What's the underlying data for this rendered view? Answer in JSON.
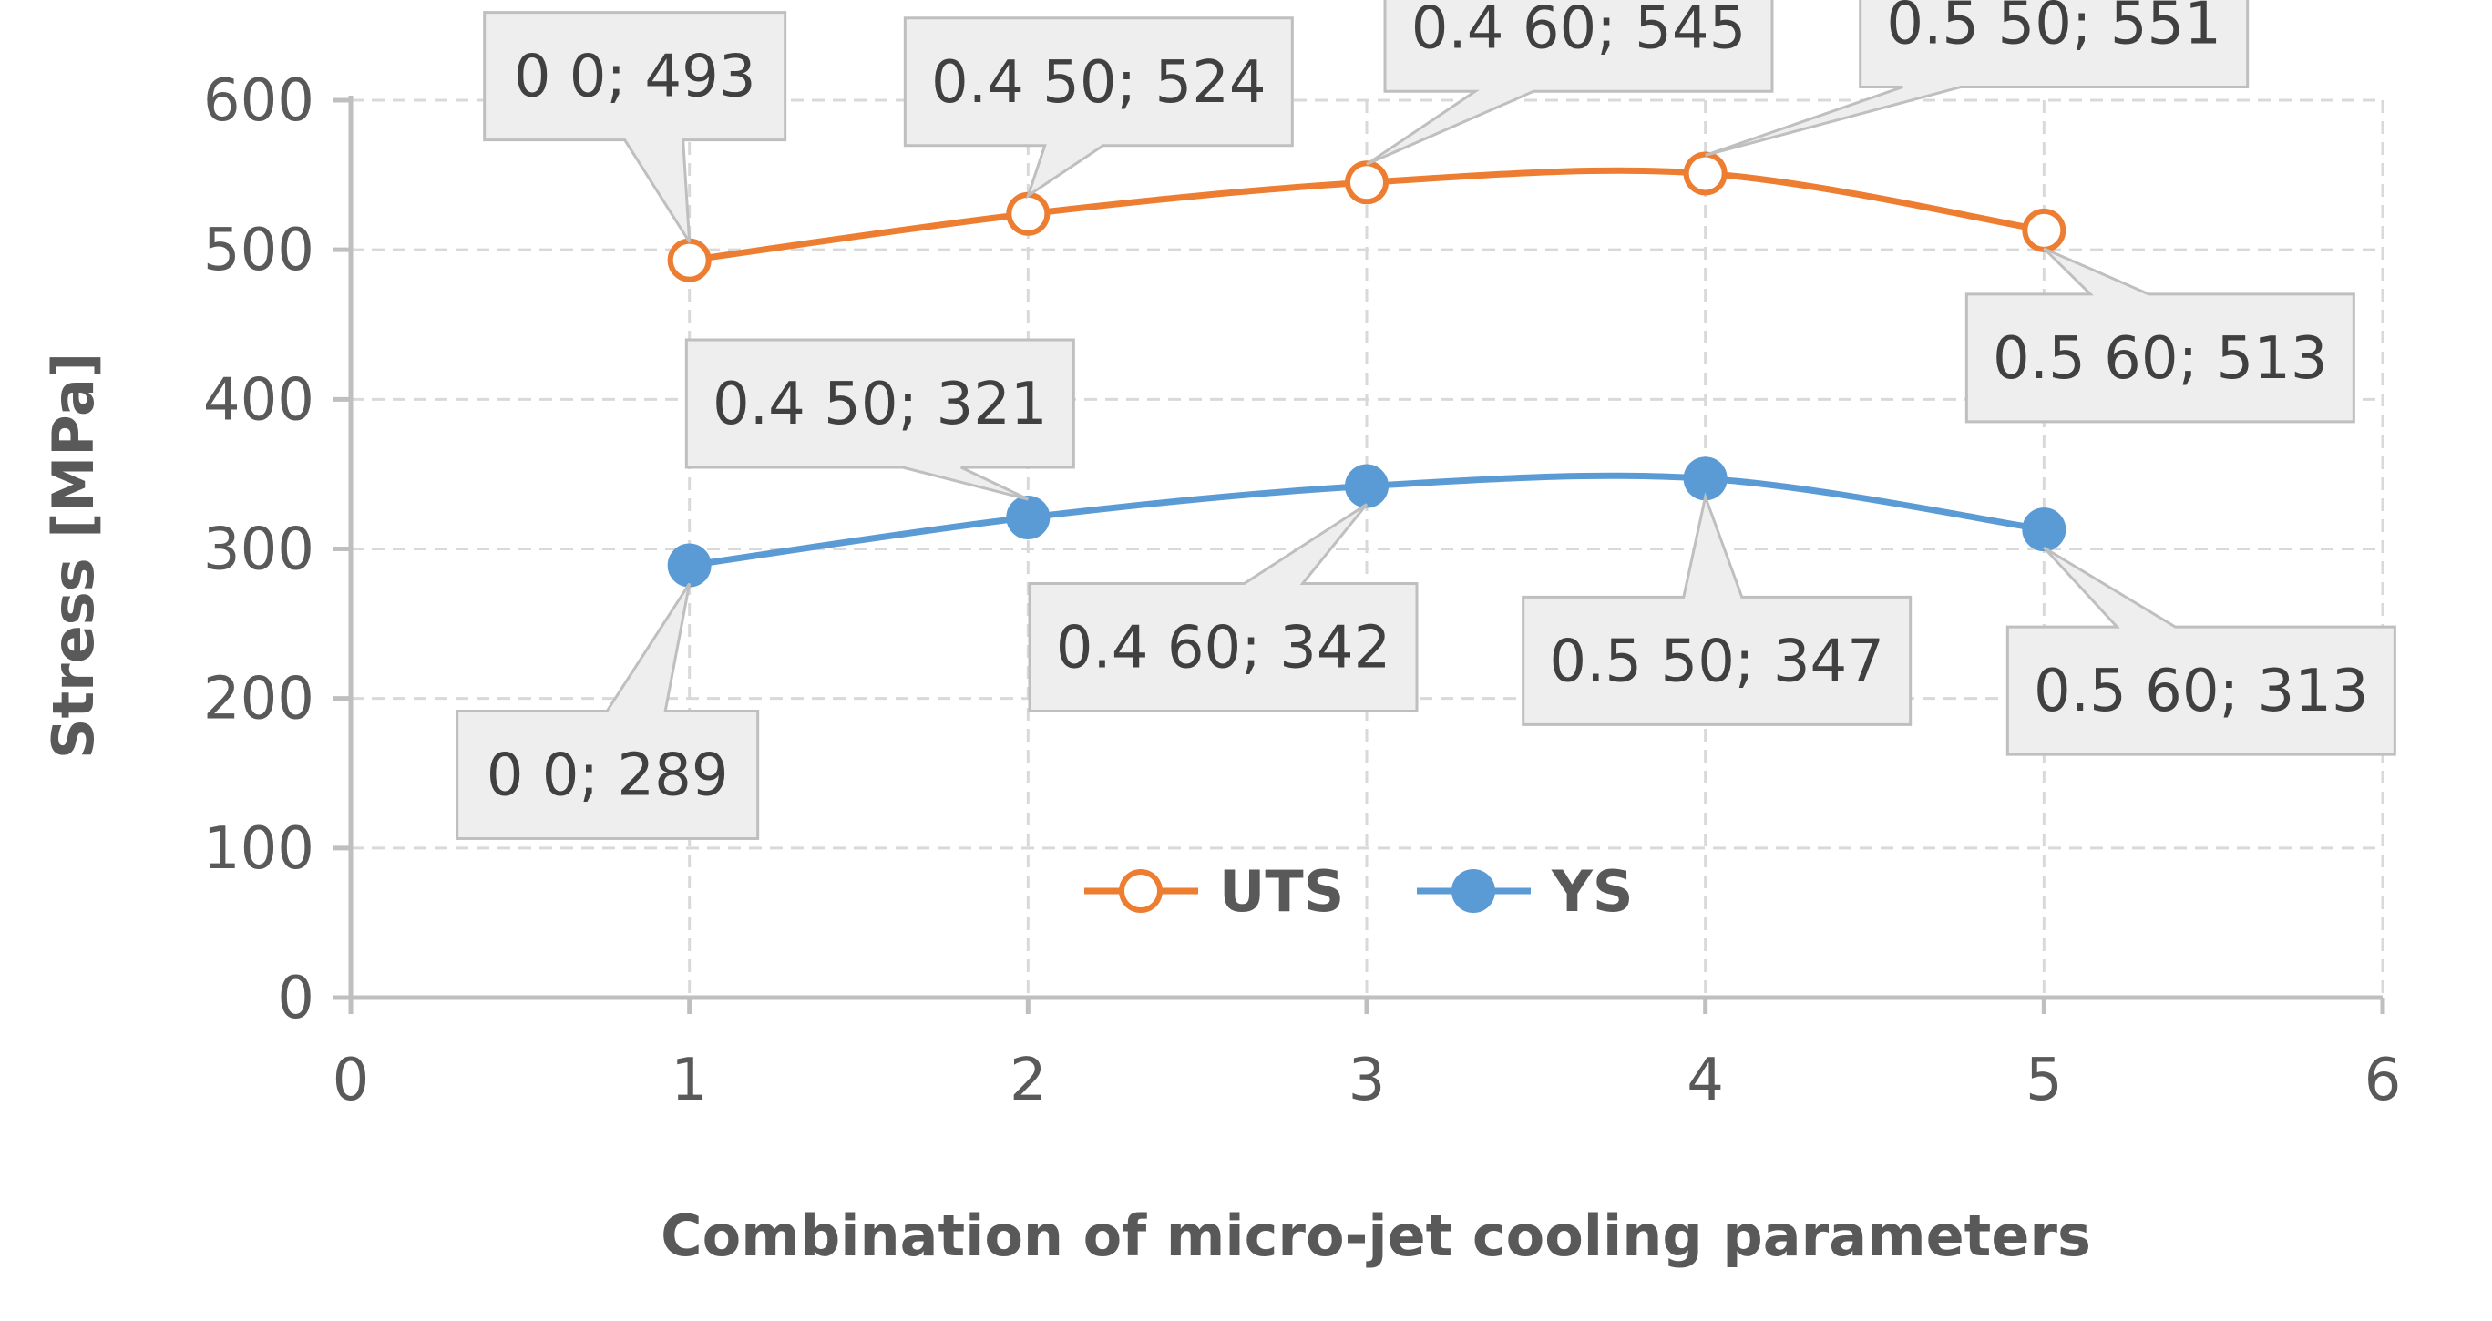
{
  "chart_data": {
    "type": "scatter",
    "title": "",
    "xlabel": "Combination of micro-jet cooling parameters",
    "ylabel": "Stress [MPa]",
    "xlim": [
      0,
      6
    ],
    "ylim": [
      0,
      600
    ],
    "x_ticks": [
      0,
      1,
      2,
      3,
      4,
      5,
      6
    ],
    "y_ticks": [
      0,
      100,
      200,
      300,
      400,
      500,
      600
    ],
    "grid": true,
    "legend_position": "inside-bottom-center",
    "smoothed_lines": true,
    "series": [
      {
        "name": "UTS",
        "color": "#ED7D31",
        "marker": "open-circle",
        "points": [
          {
            "x": 1,
            "y": 493,
            "label": "0 0; 493"
          },
          {
            "x": 2,
            "y": 524,
            "label": "0.4 50; 524"
          },
          {
            "x": 3,
            "y": 545,
            "label": "0.4 60; 545"
          },
          {
            "x": 4,
            "y": 551,
            "label": "0.5 50; 551"
          },
          {
            "x": 5,
            "y": 513,
            "label": "0.5 60; 513"
          }
        ]
      },
      {
        "name": "YS",
        "color": "#5B9BD5",
        "marker": "filled-circle",
        "points": [
          {
            "x": 1,
            "y": 289,
            "label": "0 0; 289"
          },
          {
            "x": 2,
            "y": 321,
            "label": "0.4 50; 321"
          },
          {
            "x": 3,
            "y": 342,
            "label": "0.4 60; 342"
          },
          {
            "x": 4,
            "y": 347,
            "label": "0.5 50; 347"
          },
          {
            "x": 5,
            "y": 313,
            "label": "0.5 60; 313"
          }
        ]
      }
    ]
  }
}
